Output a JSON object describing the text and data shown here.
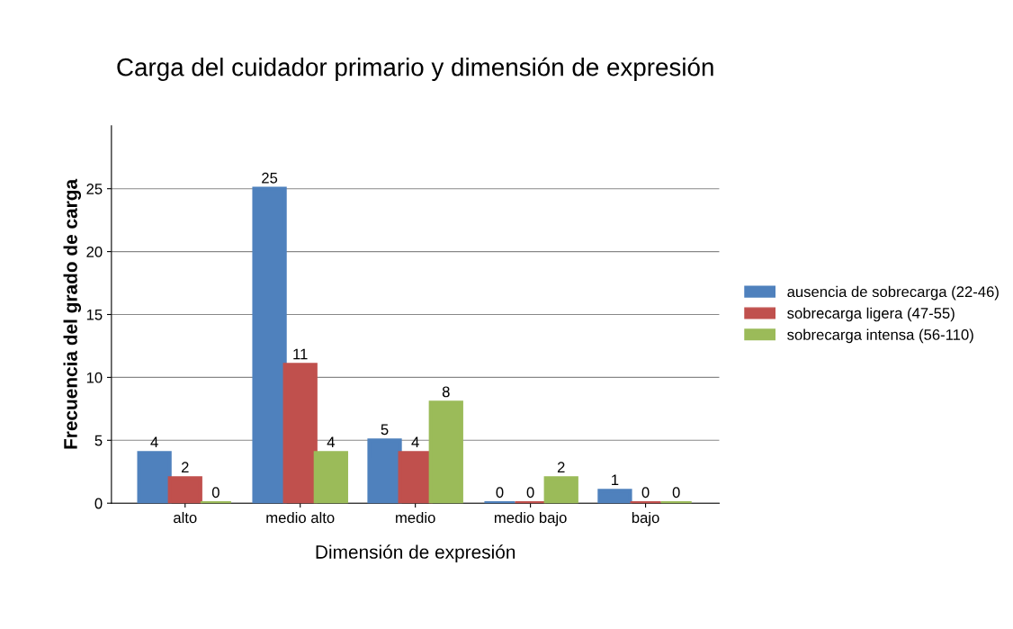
{
  "chart_data": {
    "type": "bar",
    "title": "Carga del cuidador primario y dimensión de expresión",
    "xlabel": "Dimensión de expresión",
    "ylabel": "Frecuencia del grado de carga",
    "categories": [
      "alto",
      "medio alto",
      "medio",
      "medio bajo",
      "bajo"
    ],
    "series": [
      {
        "name": "ausencia de sobrecarga (22-46)",
        "color": "#4f81bd",
        "values": [
          4,
          25,
          5,
          0,
          1
        ]
      },
      {
        "name": "sobrecarga ligera (47-55)",
        "color": "#c0504d",
        "values": [
          2,
          11,
          4,
          0,
          0
        ]
      },
      {
        "name": "sobrecarga intensa (56-110)",
        "color": "#9bbb59",
        "values": [
          0,
          4,
          8,
          2,
          0
        ]
      }
    ],
    "ylim": [
      0,
      30
    ],
    "yticks": [
      0,
      5,
      10,
      15,
      20,
      25
    ],
    "grid": "y",
    "legend": "right",
    "data_labels": true
  }
}
